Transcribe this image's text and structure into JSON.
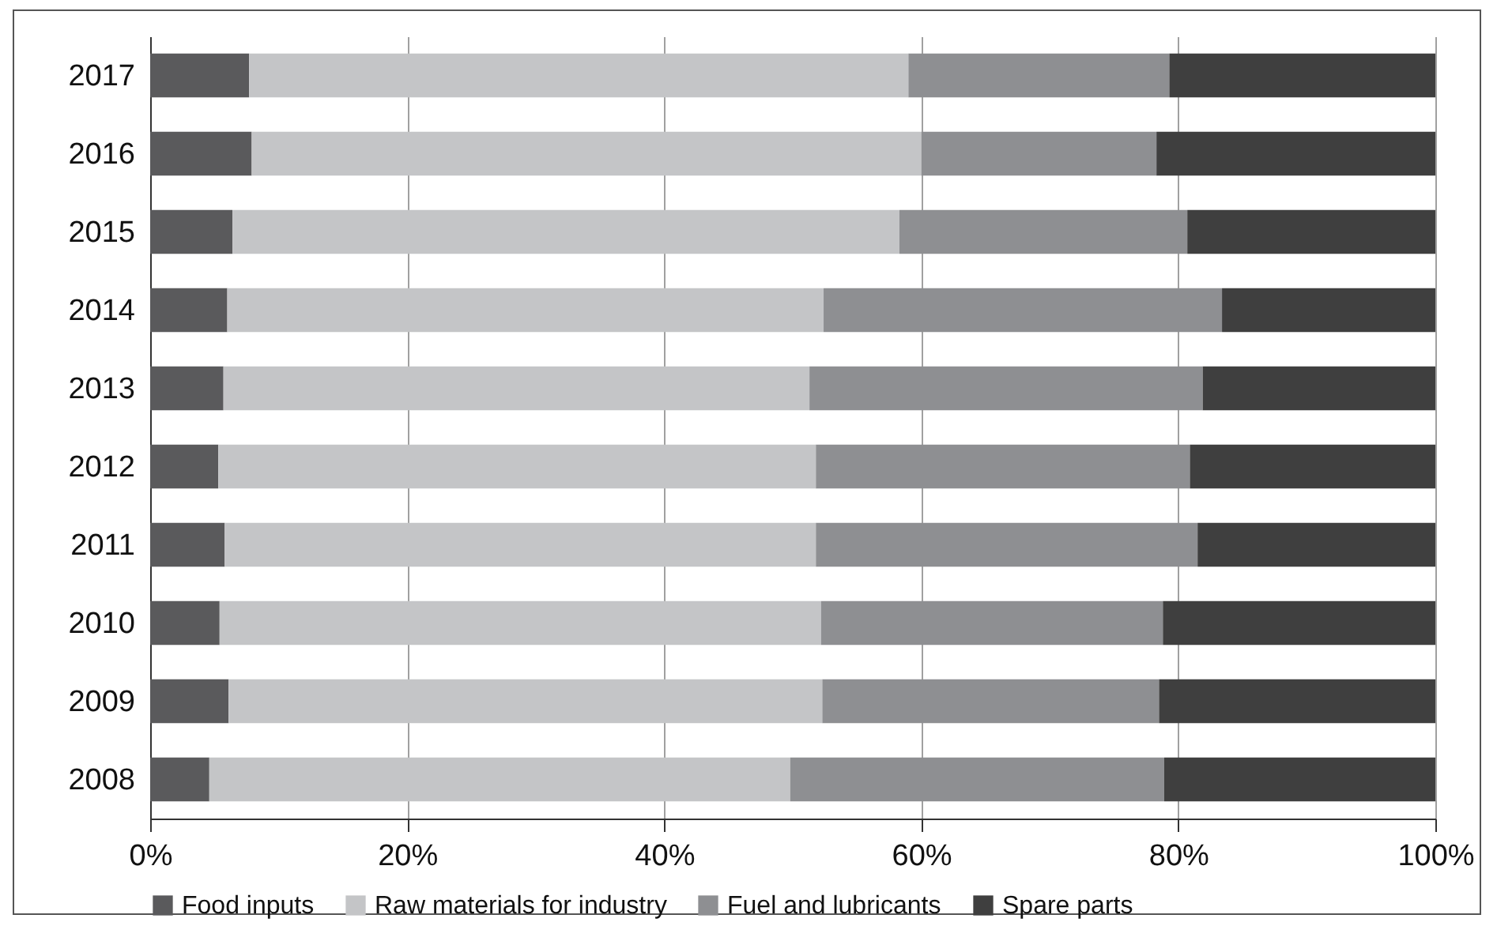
{
  "chart_data": {
    "type": "bar",
    "orientation": "horizontal",
    "stacked": true,
    "categories": [
      "2017",
      "2016",
      "2015",
      "2014",
      "2013",
      "2012",
      "2011",
      "2010",
      "2009",
      "2008"
    ],
    "series": [
      {
        "name": "Food inputs",
        "color": "#5a5a5c",
        "values": [
          7.7,
          7.9,
          6.4,
          6.0,
          5.7,
          5.3,
          5.8,
          5.4,
          6.1,
          4.6
        ]
      },
      {
        "name": "Raw materials for industry",
        "color": "#c4c5c7",
        "values": [
          51.3,
          52.1,
          51.9,
          46.4,
          45.6,
          46.5,
          46.0,
          46.8,
          46.2,
          45.2
        ]
      },
      {
        "name": "Fuel and lubricants",
        "color": "#8e8f92",
        "values": [
          20.3,
          18.3,
          22.4,
          31.0,
          30.6,
          29.1,
          29.7,
          26.6,
          26.2,
          29.1
        ]
      },
      {
        "name": "Spare parts",
        "color": "#3f3f3f",
        "values": [
          20.7,
          21.7,
          19.3,
          16.6,
          18.1,
          19.1,
          18.5,
          21.2,
          21.5,
          21.1
        ]
      }
    ],
    "xlim": [
      0,
      100
    ],
    "xticks": [
      {
        "value": 0,
        "label": "0%"
      },
      {
        "value": 20,
        "label": "20%"
      },
      {
        "value": 40,
        "label": "40%"
      },
      {
        "value": 60,
        "label": "60%"
      },
      {
        "value": 80,
        "label": "80%"
      },
      {
        "value": 100,
        "label": "100%"
      }
    ],
    "grid": "x",
    "legend": "bottom"
  }
}
